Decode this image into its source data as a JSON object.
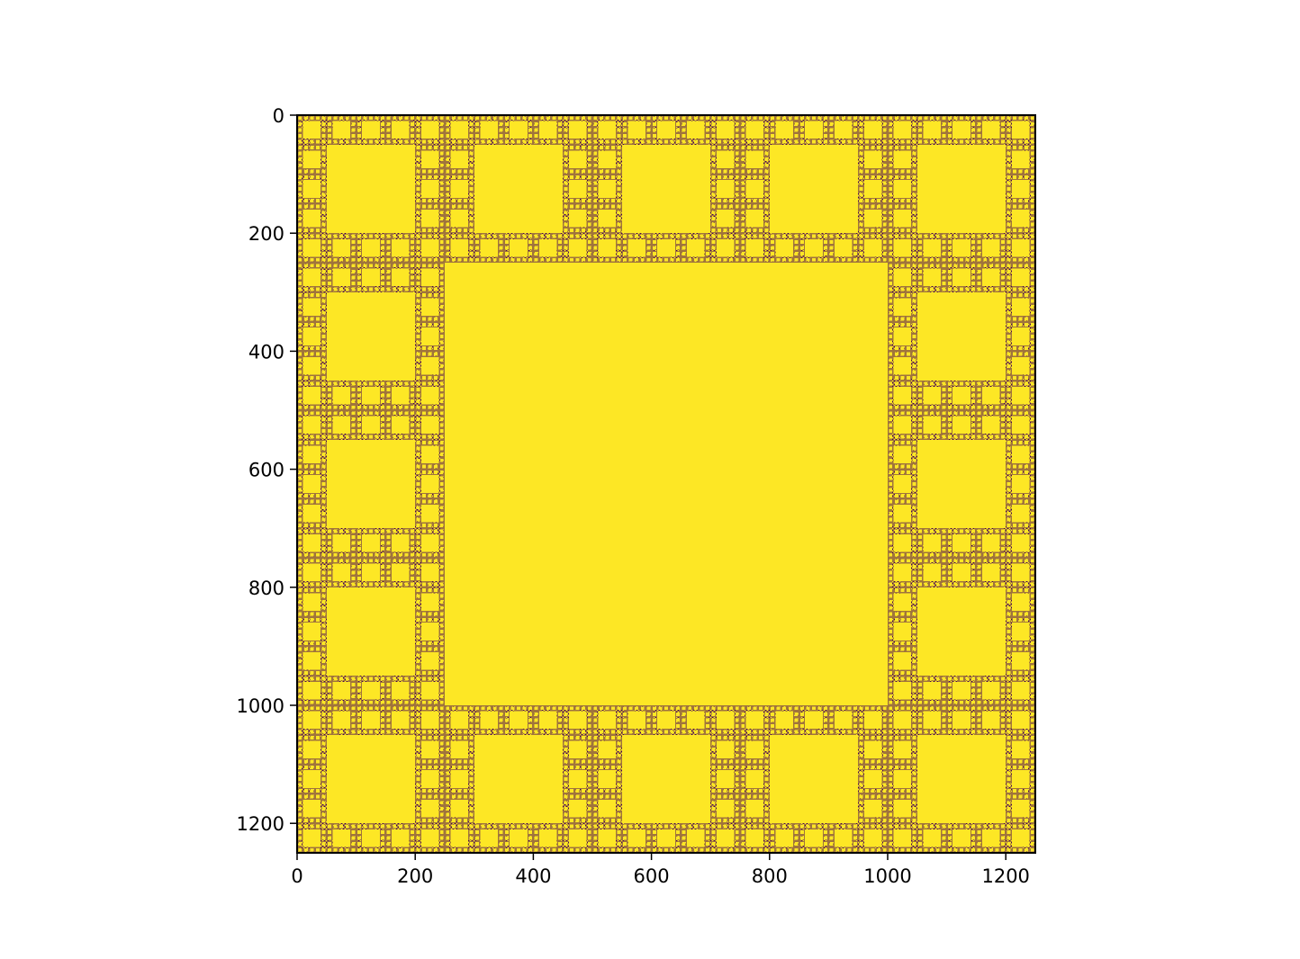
{
  "chart_data": {
    "type": "heatmap",
    "title": "",
    "xlabel": "",
    "ylabel": "",
    "description_of_values": "Binary image, size 1250 x 1250 (square fractal, 5x5 subdivision with center 3x3 block filled at each level)",
    "image_size": 1250,
    "subdivision": 5,
    "levels": 4,
    "cell_value_filled": 1,
    "cell_value_empty": 0,
    "colormap": {
      "low": "#440154",
      "high": "#fde725"
    },
    "xlim": [
      0,
      1250
    ],
    "ylim": [
      1250,
      0
    ],
    "x_ticks": [
      0,
      200,
      400,
      600,
      800,
      1000,
      1200
    ],
    "y_ticks": [
      0,
      200,
      400,
      600,
      800,
      1000,
      1200
    ],
    "x_tick_labels": [
      "0",
      "200",
      "400",
      "600",
      "800",
      "1000",
      "1200"
    ],
    "y_tick_labels": [
      "0",
      "200",
      "400",
      "600",
      "800",
      "1000",
      "1200"
    ],
    "grid": false,
    "legend": "none"
  }
}
